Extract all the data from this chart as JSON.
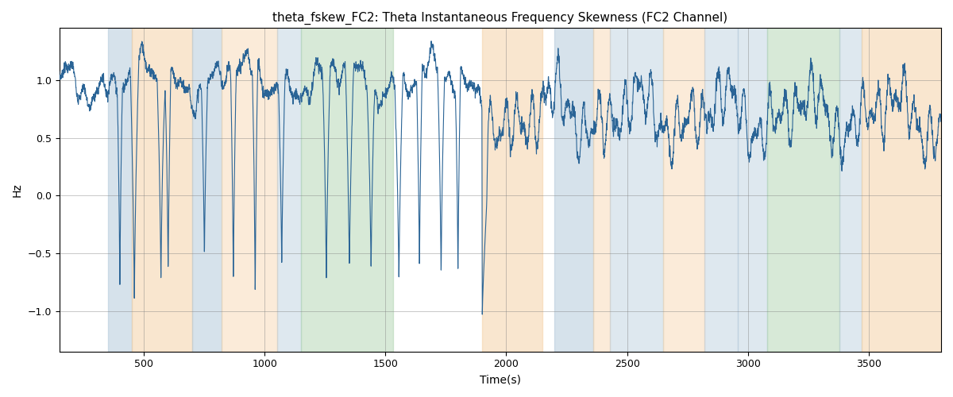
{
  "title": "theta_fskew_FC2: Theta Instantaneous Frequency Skewness (FC2 Channel)",
  "xlabel": "Time(s)",
  "ylabel": "Hz",
  "xlim": [
    150,
    3800
  ],
  "ylim": [
    -1.35,
    1.45
  ],
  "line_color": "#2a6496",
  "line_width": 0.8,
  "grid": true,
  "colored_bands": [
    {
      "xmin": 350,
      "xmax": 450,
      "color": "#aec6d8",
      "alpha": 0.5
    },
    {
      "xmin": 450,
      "xmax": 700,
      "color": "#f5cfa0",
      "alpha": 0.5
    },
    {
      "xmin": 700,
      "xmax": 820,
      "color": "#aec6d8",
      "alpha": 0.5
    },
    {
      "xmin": 820,
      "xmax": 1050,
      "color": "#f5cfa0",
      "alpha": 0.4
    },
    {
      "xmin": 1050,
      "xmax": 1150,
      "color": "#aec6d8",
      "alpha": 0.4
    },
    {
      "xmin": 1150,
      "xmax": 1530,
      "color": "#a8d0a8",
      "alpha": 0.45
    },
    {
      "xmin": 1900,
      "xmax": 2150,
      "color": "#f5cfa0",
      "alpha": 0.5
    },
    {
      "xmin": 2200,
      "xmax": 2360,
      "color": "#aec6d8",
      "alpha": 0.5
    },
    {
      "xmin": 2360,
      "xmax": 2430,
      "color": "#f5cfa0",
      "alpha": 0.4
    },
    {
      "xmin": 2430,
      "xmax": 2650,
      "color": "#aec6d8",
      "alpha": 0.4
    },
    {
      "xmin": 2650,
      "xmax": 2820,
      "color": "#f5cfa0",
      "alpha": 0.4
    },
    {
      "xmin": 2820,
      "xmax": 2960,
      "color": "#aec6d8",
      "alpha": 0.4
    },
    {
      "xmin": 2960,
      "xmax": 3080,
      "color": "#aec6d8",
      "alpha": 0.4
    },
    {
      "xmin": 3080,
      "xmax": 3380,
      "color": "#a8d0a8",
      "alpha": 0.45
    },
    {
      "xmin": 3380,
      "xmax": 3470,
      "color": "#aec6d8",
      "alpha": 0.4
    },
    {
      "xmin": 3470,
      "xmax": 3800,
      "color": "#f5cfa0",
      "alpha": 0.5
    }
  ],
  "seed": 7,
  "n_points": 7000
}
